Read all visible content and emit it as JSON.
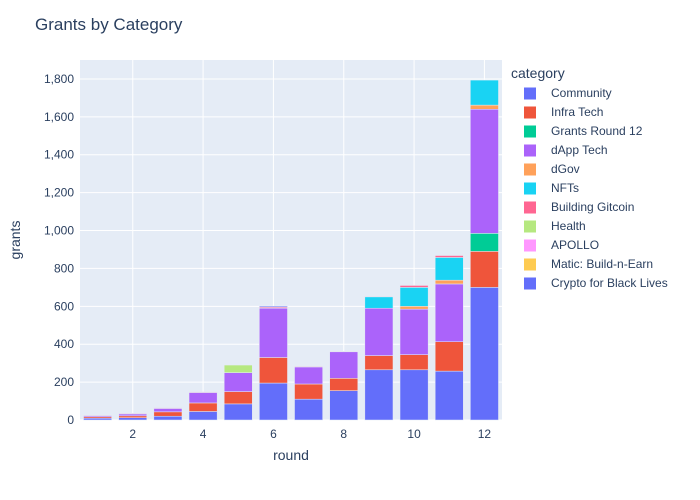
{
  "chart_data": {
    "type": "bar",
    "stacked": true,
    "title": "Grants by Category",
    "xlabel": "round",
    "ylabel": "grants",
    "x": [
      1,
      2,
      3,
      4,
      5,
      6,
      7,
      8,
      9,
      10,
      11,
      12
    ],
    "x_ticks": [
      "2",
      "4",
      "6",
      "8",
      "10",
      "12"
    ],
    "x_tick_values": [
      2,
      4,
      6,
      8,
      10,
      12
    ],
    "ylim": [
      0,
      1900
    ],
    "y_ticks": [
      "0",
      "200",
      "400",
      "600",
      "800",
      "1,000",
      "1,200",
      "1,400",
      "1,600",
      "1,800"
    ],
    "y_tick_values": [
      0,
      200,
      400,
      600,
      800,
      1000,
      1200,
      1400,
      1600,
      1800
    ],
    "grid": true,
    "legend_title": "category",
    "legend_position": "right",
    "series": [
      {
        "name": "Community",
        "color": "#636efa",
        "values": [
          10,
          12,
          20,
          45,
          85,
          195,
          110,
          155,
          265,
          265,
          258,
          700
        ]
      },
      {
        "name": "Infra Tech",
        "color": "#ef553b",
        "values": [
          7,
          10,
          23,
          45,
          65,
          135,
          80,
          65,
          75,
          80,
          155,
          190
        ]
      },
      {
        "name": "Grants Round 12",
        "color": "#00cc96",
        "values": [
          0,
          0,
          0,
          0,
          0,
          0,
          0,
          0,
          0,
          0,
          0,
          95
        ]
      },
      {
        "name": "dApp Tech",
        "color": "#ab63fa",
        "values": [
          6,
          10,
          18,
          55,
          100,
          260,
          90,
          140,
          250,
          240,
          305,
          655
        ]
      },
      {
        "name": "dGov",
        "color": "#ffa15a",
        "values": [
          0,
          0,
          0,
          0,
          0,
          0,
          0,
          0,
          0,
          15,
          20,
          22
        ]
      },
      {
        "name": "NFTs",
        "color": "#19d3f3",
        "values": [
          0,
          0,
          0,
          0,
          0,
          0,
          0,
          0,
          60,
          100,
          120,
          132
        ]
      },
      {
        "name": "Building Gitcoin",
        "color": "#ff6692",
        "values": [
          3,
          3,
          3,
          3,
          0,
          5,
          3,
          3,
          3,
          10,
          10,
          0
        ]
      },
      {
        "name": "Health",
        "color": "#b6e880",
        "values": [
          0,
          0,
          0,
          0,
          40,
          0,
          0,
          0,
          0,
          0,
          0,
          0
        ]
      },
      {
        "name": "APOLLO",
        "color": "#ff97ff",
        "values": [
          0,
          0,
          0,
          0,
          0,
          0,
          0,
          0,
          0,
          0,
          0,
          0
        ]
      },
      {
        "name": "Matic: Build-n-Earn",
        "color": "#fecb52",
        "values": [
          0,
          0,
          0,
          0,
          0,
          0,
          0,
          0,
          0,
          0,
          0,
          0
        ]
      },
      {
        "name": "Crypto for Black Lives",
        "color": "#636efa",
        "values": [
          0,
          0,
          0,
          0,
          0,
          5,
          0,
          0,
          0,
          0,
          0,
          0
        ]
      }
    ],
    "colors": {
      "plot_background": "#e5ecf6",
      "gridline": "#ffffff",
      "text": "#2a3f5f"
    }
  }
}
